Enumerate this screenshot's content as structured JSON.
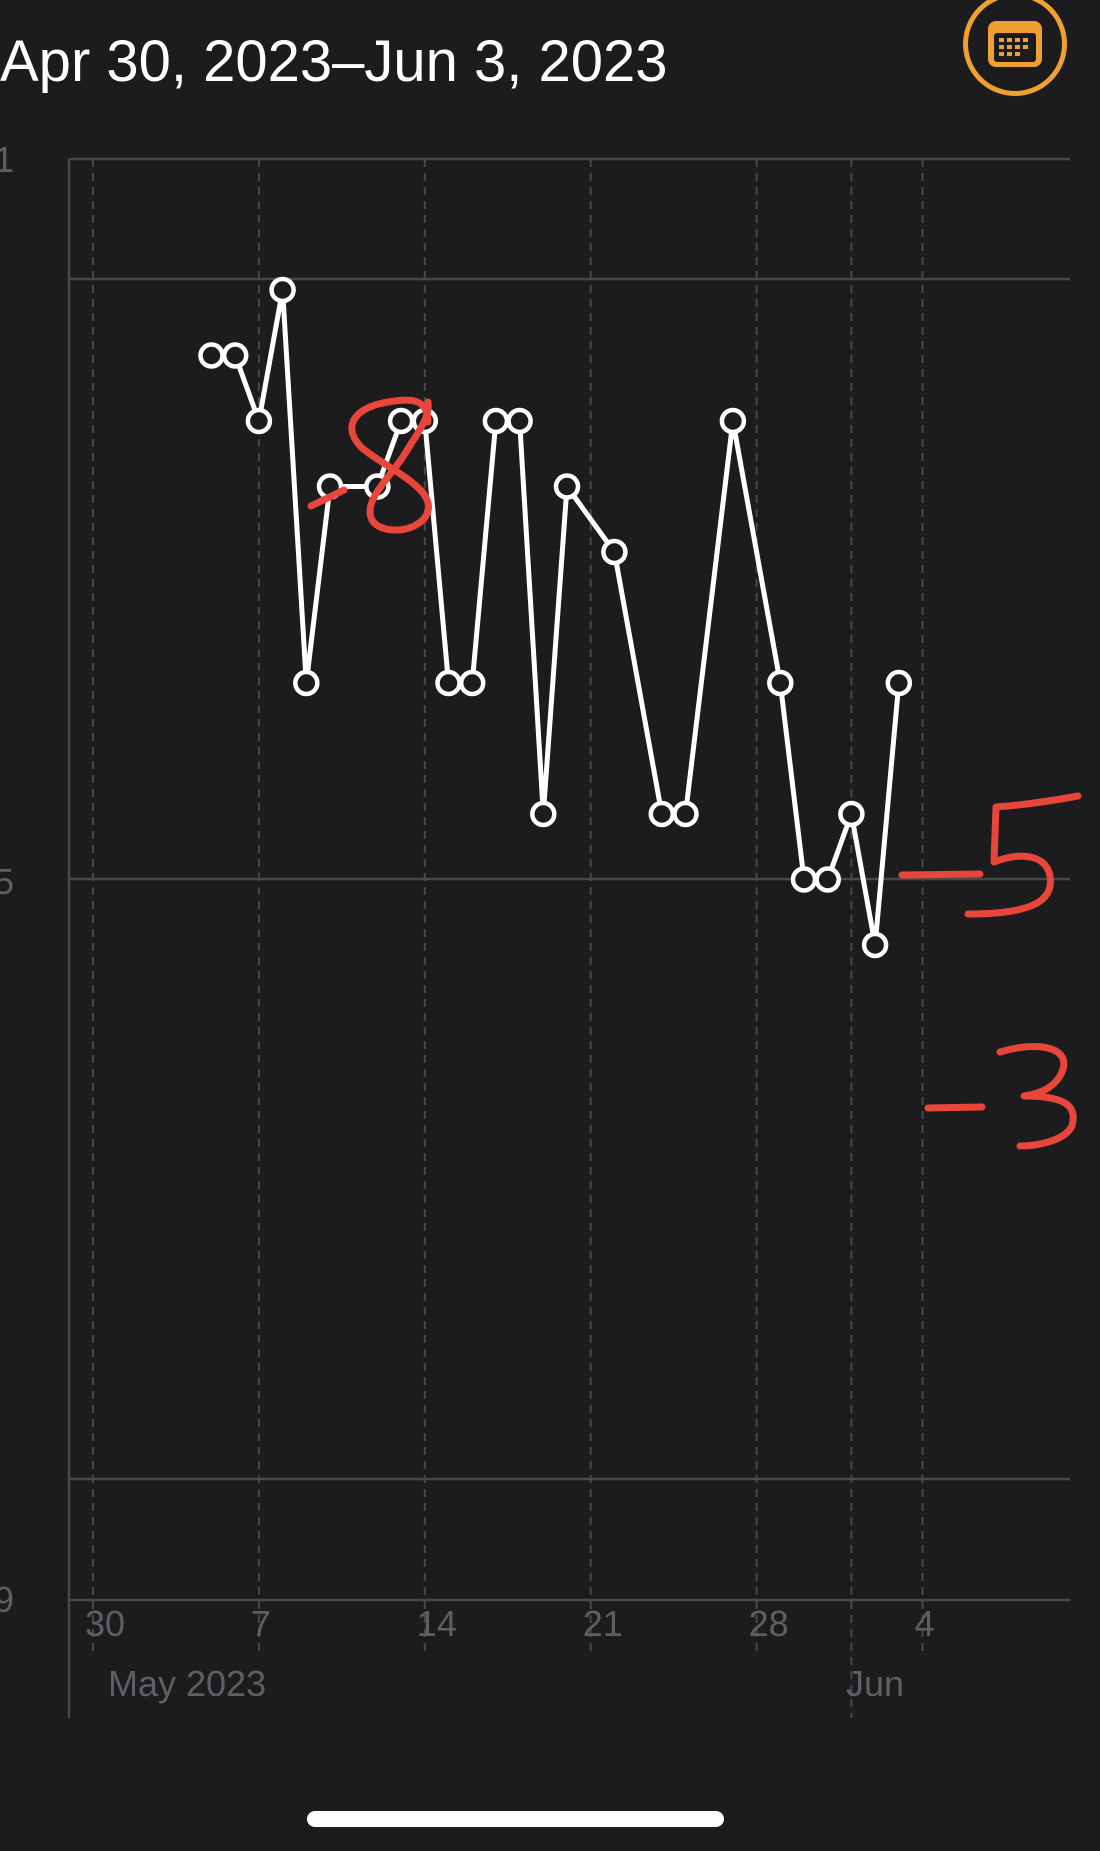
{
  "header": {
    "date_range": "Apr 30, 2023–Jun 3, 2023"
  },
  "calendar_button": {
    "icon": "calendar-icon",
    "color": "#f0a030"
  },
  "chart_data": {
    "type": "line",
    "title": "",
    "x": [
      "2023-05-05",
      "2023-05-06",
      "2023-05-07",
      "2023-05-08",
      "2023-05-09",
      "2023-05-10",
      "2023-05-12",
      "2023-05-13",
      "2023-05-14",
      "2023-05-15",
      "2023-05-16",
      "2023-05-17",
      "2023-05-18",
      "2023-05-19",
      "2023-05-20",
      "2023-05-22",
      "2023-05-24",
      "2023-05-25",
      "2023-05-27",
      "2023-05-29",
      "2023-05-30",
      "2023-05-31",
      "2023-06-01",
      "2023-06-02",
      "2023-06-03"
    ],
    "series": [
      {
        "values": [
          7.8,
          7.8,
          7.7,
          7.9,
          7.3,
          7.6,
          7.6,
          7.7,
          7.7,
          7.3,
          7.3,
          7.7,
          7.7,
          7.1,
          7.6,
          7.5,
          7.1,
          7.1,
          7.7,
          7.3,
          7.0,
          7.0,
          7.1,
          6.9,
          7.3
        ]
      }
    ],
    "ylim": [
      5.9,
      8.1
    ],
    "y_ticks": [
      "1",
      "5",
      "9"
    ],
    "x_ticks": [
      {
        "date": "2023-04-30",
        "label": "30"
      },
      {
        "date": "2023-05-07",
        "label": "7"
      },
      {
        "date": "2023-05-14",
        "label": "14"
      },
      {
        "date": "2023-05-21",
        "label": "21"
      },
      {
        "date": "2023-05-28",
        "label": "28"
      },
      {
        "date": "2023-06-04",
        "label": "4"
      }
    ],
    "month_labels": [
      {
        "date": "2023-04-30",
        "label": "May 2023"
      },
      {
        "date": "2023-06-01",
        "label": "Jun"
      }
    ],
    "annotations": [
      "-8",
      "-5",
      "-3"
    ],
    "line_color": "#ffffff",
    "annotation_color": "#e8463a",
    "grid": true
  }
}
